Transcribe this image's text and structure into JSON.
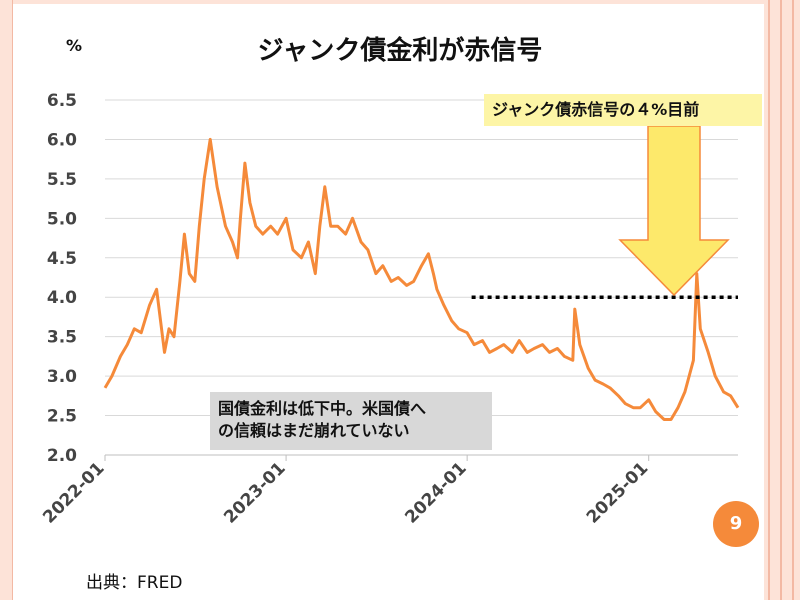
{
  "slide": {
    "title": "ジャンク債金利が赤信号",
    "unit": "%",
    "callout": "ジャンク債赤信号の４%目前",
    "note_line1": "国債金利は低下中。米国債へ",
    "note_line2": "の信頼はまだ崩れていない",
    "page_number": "9",
    "source": "出典：FRED"
  },
  "colors": {
    "line": "#f58a3a",
    "arrow_fill": "#fde96b",
    "arrow_stroke": "#f58a3a",
    "grid": "#d9d9d9",
    "threshold": "#000000",
    "callout_bg": "#fdf5a6",
    "note_bg": "#d8d8d8"
  },
  "chart_data": {
    "type": "line",
    "y_ticks": [
      "2.0",
      "2.5",
      "3.0",
      "3.5",
      "4.0",
      "4.5",
      "5.0",
      "5.5",
      "6.0",
      "6.5"
    ],
    "x_ticks": [
      "2022-01",
      "2023-01",
      "2024-01",
      "2025-01"
    ],
    "ylim": [
      2.0,
      6.5
    ],
    "xlim": [
      "2022-01-01",
      "2025-06-30"
    ],
    "grid": "horizontal",
    "threshold": 4.0,
    "threshold_start": "2024-01-10",
    "series": [
      {
        "x": [
          "2022-01-01",
          "2022-01-15",
          "2022-02-01",
          "2022-02-15",
          "2022-03-01",
          "2022-03-15",
          "2022-04-01",
          "2022-04-15",
          "2022-05-01",
          "2022-05-10",
          "2022-05-20",
          "2022-06-01",
          "2022-06-10",
          "2022-06-20",
          "2022-07-01",
          "2022-07-10",
          "2022-07-20",
          "2022-08-01",
          "2022-08-15",
          "2022-09-01",
          "2022-09-15",
          "2022-09-25",
          "2022-10-01",
          "2022-10-10",
          "2022-10-20",
          "2022-11-01",
          "2022-11-15",
          "2022-12-01",
          "2022-12-15",
          "2023-01-01",
          "2023-01-15",
          "2023-02-01",
          "2023-02-15",
          "2023-03-01",
          "2023-03-10",
          "2023-03-20",
          "2023-04-01",
          "2023-04-15",
          "2023-05-01",
          "2023-05-15",
          "2023-06-01",
          "2023-06-15",
          "2023-07-01",
          "2023-07-15",
          "2023-08-01",
          "2023-08-15",
          "2023-09-01",
          "2023-09-15",
          "2023-10-01",
          "2023-10-15",
          "2023-10-25",
          "2023-11-01",
          "2023-11-15",
          "2023-12-01",
          "2023-12-15",
          "2024-01-01",
          "2024-01-15",
          "2024-02-01",
          "2024-02-15",
          "2024-03-01",
          "2024-03-15",
          "2024-04-01",
          "2024-04-15",
          "2024-05-01",
          "2024-05-15",
          "2024-06-01",
          "2024-06-15",
          "2024-07-01",
          "2024-07-15",
          "2024-08-01",
          "2024-08-05",
          "2024-08-15",
          "2024-09-01",
          "2024-09-15",
          "2024-10-01",
          "2024-10-15",
          "2024-11-01",
          "2024-11-15",
          "2024-12-01",
          "2024-12-15",
          "2025-01-01",
          "2025-01-15",
          "2025-02-01",
          "2025-02-15",
          "2025-03-01",
          "2025-03-15",
          "2025-04-01",
          "2025-04-08",
          "2025-04-15",
          "2025-05-01",
          "2025-05-15",
          "2025-06-01",
          "2025-06-15",
          "2025-06-30"
        ],
        "values": [
          2.85,
          3.0,
          3.25,
          3.4,
          3.6,
          3.55,
          3.9,
          4.1,
          3.3,
          3.6,
          3.5,
          4.2,
          4.8,
          4.3,
          4.2,
          4.9,
          5.5,
          6.0,
          5.4,
          4.9,
          4.7,
          4.5,
          5.0,
          5.7,
          5.2,
          4.9,
          4.8,
          4.9,
          4.8,
          5.0,
          4.6,
          4.5,
          4.7,
          4.3,
          4.9,
          5.4,
          4.9,
          4.9,
          4.8,
          5.0,
          4.7,
          4.6,
          4.3,
          4.4,
          4.2,
          4.25,
          4.15,
          4.2,
          4.4,
          4.55,
          4.3,
          4.1,
          3.9,
          3.7,
          3.6,
          3.55,
          3.4,
          3.45,
          3.3,
          3.35,
          3.4,
          3.3,
          3.45,
          3.3,
          3.35,
          3.4,
          3.3,
          3.35,
          3.25,
          3.2,
          3.85,
          3.4,
          3.1,
          2.95,
          2.9,
          2.85,
          2.75,
          2.65,
          2.6,
          2.6,
          2.7,
          2.55,
          2.45,
          2.45,
          2.6,
          2.8,
          3.2,
          4.3,
          3.6,
          3.3,
          3.0,
          2.8,
          2.75,
          2.6
        ]
      }
    ]
  }
}
